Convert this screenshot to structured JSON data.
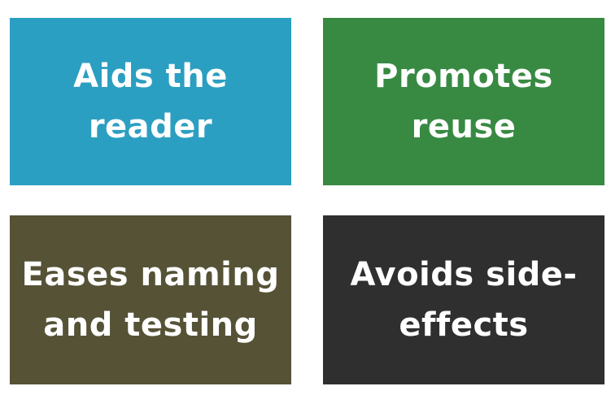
{
  "tiles": [
    {
      "text": "Aids the\nreader",
      "color": "#2b9fc1"
    },
    {
      "text": "Promotes\nreuse",
      "color": "#388a42"
    },
    {
      "text": "Eases naming\nand testing",
      "color": "#555236"
    },
    {
      "text": "Avoids side-\neffects",
      "color": "#2f2f2f"
    }
  ]
}
